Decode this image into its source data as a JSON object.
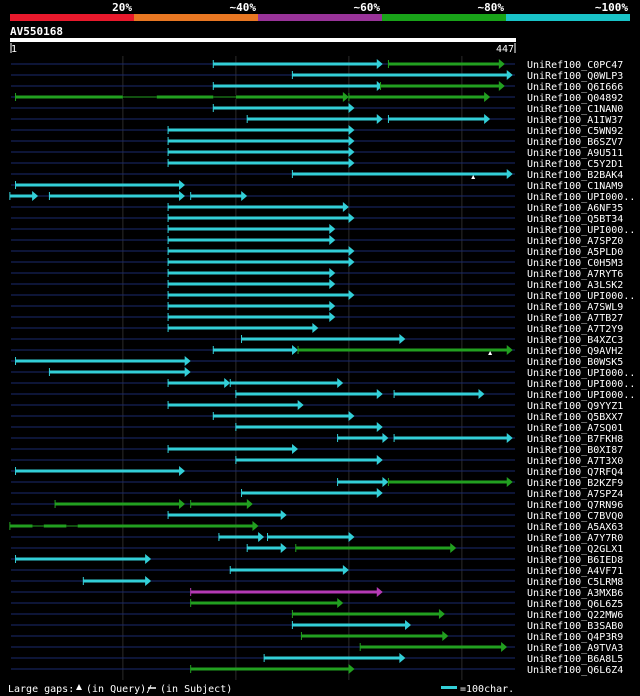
{
  "query_id": "AV550168",
  "query_length": 447,
  "query_start_label": "1",
  "query_end_label": "447",
  "legend_scale_labels": [
    "20%",
    "~40%",
    "~60%",
    "~80%",
    "~100%"
  ],
  "legend_scale_colors": [
    "#e8192c",
    "#e87722",
    "#993399",
    "#19a319",
    "#19c3c8"
  ],
  "footer_gaps_prefix": "Large gaps: ",
  "footer_gaps_query": "(in Query)/",
  "footer_gaps_subject": "(in Subject)",
  "footer_scale": "=100char.",
  "colors": {
    "cyan": "#33cfd8",
    "green": "#22a020",
    "magenta": "#b53ab5",
    "grid": "#2a2a2a",
    "track": "#1a2a6e",
    "ruler": "#ffffff"
  },
  "chart_data": {
    "type": "alignment",
    "title": "AV550168",
    "x_unit": "query position",
    "xlim": [
      1,
      447
    ],
    "grid_positions": [
      100,
      200,
      300,
      400
    ],
    "hits": [
      {
        "label": "UniRef100_C0PC47",
        "segs": [
          [
            180,
            330,
            "cyan"
          ],
          [
            335,
            438,
            "green"
          ]
        ]
      },
      {
        "label": "UniRef100_Q0WLP3",
        "segs": [
          [
            250,
            445,
            "cyan"
          ]
        ]
      },
      {
        "label": "UniRef100_Q6I666",
        "segs": [
          [
            180,
            330,
            "cyan"
          ],
          [
            328,
            438,
            "green"
          ]
        ]
      },
      {
        "label": "UniRef100_Q04892",
        "segs": [
          [
            5,
            300,
            "green",
            [
              [
                100,
                130
              ],
              [
                180,
                200
              ]
            ]
          ],
          [
            300,
            425,
            "green"
          ]
        ]
      },
      {
        "label": "UniRef100_C1NAN0",
        "segs": [
          [
            180,
            305,
            "cyan"
          ]
        ]
      },
      {
        "label": "UniRef100_A1IW37",
        "segs": [
          [
            210,
            330,
            "cyan"
          ],
          [
            335,
            425,
            "cyan"
          ]
        ]
      },
      {
        "label": "UniRef100_C5WN92",
        "segs": [
          [
            140,
            305,
            "cyan"
          ]
        ]
      },
      {
        "label": "UniRef100_B6SZV7",
        "segs": [
          [
            140,
            305,
            "cyan"
          ]
        ]
      },
      {
        "label": "UniRef100_A9U511",
        "segs": [
          [
            140,
            305,
            "cyan"
          ]
        ]
      },
      {
        "label": "UniRef100_C5Y2D1",
        "segs": [
          [
            140,
            305,
            "cyan"
          ]
        ]
      },
      {
        "label": "UniRef100_B2BAK4",
        "segs": [
          [
            250,
            445,
            "cyan"
          ]
        ],
        "gap_mark": 410
      },
      {
        "label": "UniRef100_C1NAM9",
        "segs": [
          [
            5,
            155,
            "cyan"
          ]
        ]
      },
      {
        "label": "UniRef100_UPI000..",
        "segs": [
          [
            0,
            25,
            "cyan"
          ],
          [
            35,
            155,
            "cyan"
          ],
          [
            160,
            210,
            "cyan"
          ]
        ]
      },
      {
        "label": "UniRef100_A6NF35",
        "segs": [
          [
            140,
            300,
            "cyan"
          ]
        ]
      },
      {
        "label": "UniRef100_Q5BT34",
        "segs": [
          [
            140,
            305,
            "cyan"
          ]
        ]
      },
      {
        "label": "UniRef100_UPI000..",
        "segs": [
          [
            140,
            288,
            "cyan"
          ]
        ]
      },
      {
        "label": "UniRef100_A7SPZ0",
        "segs": [
          [
            140,
            288,
            "cyan"
          ]
        ]
      },
      {
        "label": "UniRef100_A5PLD0",
        "segs": [
          [
            140,
            305,
            "cyan"
          ]
        ]
      },
      {
        "label": "UniRef100_C0H5M3",
        "segs": [
          [
            140,
            305,
            "cyan"
          ]
        ]
      },
      {
        "label": "UniRef100_A7RYT6",
        "segs": [
          [
            140,
            288,
            "cyan"
          ]
        ]
      },
      {
        "label": "UniRef100_A3LSK2",
        "segs": [
          [
            140,
            288,
            "cyan"
          ]
        ]
      },
      {
        "label": "UniRef100_UPI000..",
        "segs": [
          [
            140,
            305,
            "cyan"
          ]
        ]
      },
      {
        "label": "UniRef100_A7SWL9",
        "segs": [
          [
            140,
            288,
            "cyan"
          ]
        ]
      },
      {
        "label": "UniRef100_A7TB27",
        "segs": [
          [
            140,
            288,
            "cyan"
          ]
        ]
      },
      {
        "label": "UniRef100_A7T2Y9",
        "segs": [
          [
            140,
            273,
            "cyan"
          ]
        ]
      },
      {
        "label": "UniRef100_B4XZC3",
        "segs": [
          [
            205,
            350,
            "cyan"
          ]
        ]
      },
      {
        "label": "UniRef100_Q9AVH2",
        "segs": [
          [
            180,
            255,
            "cyan"
          ],
          [
            255,
            445,
            "green"
          ]
        ],
        "gap_mark": 425
      },
      {
        "label": "UniRef100_B0WSK5",
        "segs": [
          [
            5,
            160,
            "cyan"
          ]
        ]
      },
      {
        "label": "UniRef100_UPI000..",
        "segs": [
          [
            35,
            160,
            "cyan"
          ]
        ]
      },
      {
        "label": "UniRef100_UPI000..",
        "segs": [
          [
            140,
            195,
            "cyan"
          ],
          [
            195,
            295,
            "cyan"
          ]
        ]
      },
      {
        "label": "UniRef100_UPI000..",
        "segs": [
          [
            200,
            330,
            "cyan"
          ],
          [
            340,
            420,
            "cyan"
          ]
        ]
      },
      {
        "label": "UniRef100_Q9YYZ1",
        "segs": [
          [
            140,
            260,
            "cyan"
          ]
        ]
      },
      {
        "label": "UniRef100_Q5BXX7",
        "segs": [
          [
            180,
            305,
            "cyan"
          ]
        ]
      },
      {
        "label": "UniRef100_A7SQ01",
        "segs": [
          [
            200,
            330,
            "cyan"
          ]
        ]
      },
      {
        "label": "UniRef100_B7FKH8",
        "segs": [
          [
            290,
            335,
            "cyan"
          ],
          [
            340,
            445,
            "cyan"
          ]
        ]
      },
      {
        "label": "UniRef100_B0XI87",
        "segs": [
          [
            140,
            255,
            "cyan"
          ]
        ]
      },
      {
        "label": "UniRef100_A7T3X0",
        "segs": [
          [
            200,
            330,
            "cyan"
          ]
        ]
      },
      {
        "label": "UniRef100_Q7RFQ4",
        "segs": [
          [
            5,
            155,
            "cyan"
          ]
        ]
      },
      {
        "label": "UniRef100_B2KZF9",
        "segs": [
          [
            290,
            335,
            "cyan"
          ],
          [
            335,
            445,
            "green"
          ]
        ]
      },
      {
        "label": "UniRef100_A7SPZ4",
        "segs": [
          [
            205,
            330,
            "cyan"
          ]
        ]
      },
      {
        "label": "UniRef100_Q7RN96",
        "segs": [
          [
            40,
            155,
            "green"
          ],
          [
            160,
            215,
            "green"
          ]
        ]
      },
      {
        "label": "UniRef100_C7BVQ0",
        "segs": [
          [
            140,
            245,
            "cyan"
          ]
        ]
      },
      {
        "label": "UniRef100_A5AX63",
        "segs": [
          [
            0,
            220,
            "green",
            [
              [
                20,
                30
              ],
              [
                50,
                60
              ]
            ]
          ]
        ]
      },
      {
        "label": "UniRef100_A7Y7R0",
        "segs": [
          [
            185,
            225,
            "cyan"
          ],
          [
            228,
            305,
            "cyan"
          ]
        ]
      },
      {
        "label": "UniRef100_Q2GLX1",
        "segs": [
          [
            210,
            245,
            "cyan"
          ],
          [
            253,
            395,
            "green"
          ]
        ]
      },
      {
        "label": "UniRef100_B6IED8",
        "segs": [
          [
            5,
            125,
            "cyan"
          ]
        ]
      },
      {
        "label": "UniRef100_A4VF71",
        "segs": [
          [
            195,
            300,
            "cyan"
          ]
        ]
      },
      {
        "label": "UniRef100_C5LRM8",
        "segs": [
          [
            65,
            125,
            "cyan"
          ]
        ]
      },
      {
        "label": "UniRef100_A3MXB6",
        "segs": [
          [
            160,
            330,
            "magenta"
          ]
        ]
      },
      {
        "label": "UniRef100_Q6L6Z5",
        "segs": [
          [
            160,
            295,
            "green"
          ]
        ]
      },
      {
        "label": "UniRef100_Q22MW6",
        "segs": [
          [
            250,
            385,
            "green"
          ]
        ]
      },
      {
        "label": "UniRef100_B3SAB0",
        "segs": [
          [
            250,
            355,
            "cyan"
          ]
        ]
      },
      {
        "label": "UniRef100_Q4P3R9",
        "segs": [
          [
            258,
            388,
            "green"
          ]
        ]
      },
      {
        "label": "UniRef100_A9TVA3",
        "segs": [
          [
            310,
            440,
            "green"
          ]
        ]
      },
      {
        "label": "UniRef100_B6A8L5",
        "segs": [
          [
            225,
            350,
            "cyan"
          ]
        ]
      },
      {
        "label": "UniRef100_Q6L6Z4",
        "segs": [
          [
            160,
            305,
            "green"
          ]
        ]
      }
    ]
  }
}
